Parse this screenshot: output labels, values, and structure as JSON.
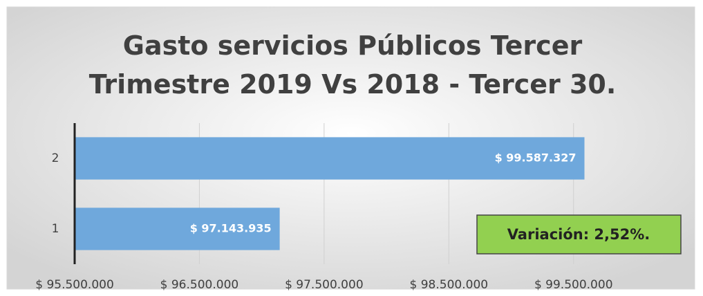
{
  "chart_data": {
    "type": "bar",
    "orientation": "horizontal",
    "title": "Gasto servicios Públicos Tercer Trimestre 2019 Vs 2018 - Tercer 30.",
    "categories": [
      "1",
      "2"
    ],
    "values": [
      97143935,
      99587327
    ],
    "value_labels": [
      "$ 97.143.935",
      "$ 99.587.327"
    ],
    "color": "#6fa8dc",
    "xlim": [
      95500000,
      100100000
    ],
    "xticks": [
      {
        "value": 95500000,
        "label": "$ 95.500.000"
      },
      {
        "value": 96500000,
        "label": "$ 96.500.000"
      },
      {
        "value": 97500000,
        "label": "$ 97.500.000"
      },
      {
        "value": 98500000,
        "label": "$ 98.500.000"
      },
      {
        "value": 99500000,
        "label": "$ 99.500.000"
      }
    ],
    "grid": true,
    "annotation": "Variación: 2,52%.",
    "annotation_color": "#92d050"
  }
}
